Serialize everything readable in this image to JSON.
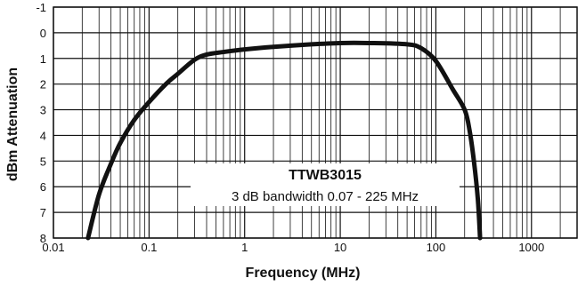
{
  "chart_data": {
    "type": "line",
    "xlabel": "Frequency (MHz)",
    "ylabel": "dBm Attenuation",
    "x_scale": "log",
    "xlim": [
      0.01,
      3000
    ],
    "ylim": [
      -1,
      8
    ],
    "y_inverted": true,
    "grid": true,
    "x_tick_labels": [
      "0.01",
      "0.1",
      "1",
      "10",
      "100",
      "1000"
    ],
    "y_tick_labels": [
      "-1",
      "0",
      "1",
      "2",
      "3",
      "4",
      "5",
      "6",
      "7",
      "8"
    ],
    "annotation": {
      "title": "TTWB3015",
      "subtitle": "3 dB bandwidth 0.07 - 225 MHz"
    },
    "series": [
      {
        "x": [
          0.023,
          0.03,
          0.04,
          0.05,
          0.07,
          0.1,
          0.15,
          0.2,
          0.3,
          0.4,
          0.6,
          1,
          2,
          5,
          10,
          20,
          50,
          70,
          100,
          150,
          200,
          225,
          250,
          275,
          290
        ],
        "y": [
          8.0,
          6.3,
          5.1,
          4.3,
          3.4,
          2.7,
          2.0,
          1.6,
          1.05,
          0.85,
          0.75,
          0.65,
          0.55,
          0.45,
          0.4,
          0.4,
          0.45,
          0.6,
          1.1,
          2.2,
          3.0,
          3.8,
          5.0,
          6.5,
          8.0
        ]
      }
    ]
  }
}
